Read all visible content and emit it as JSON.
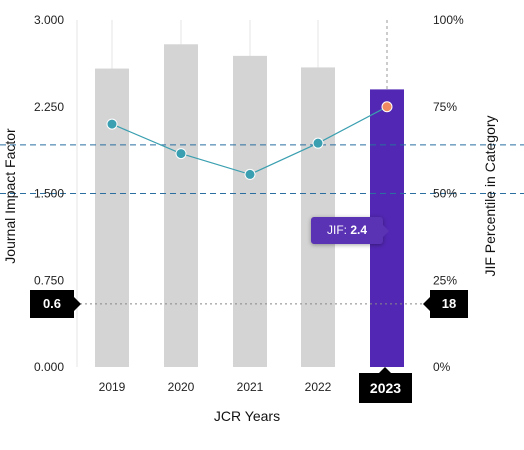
{
  "chart_data": {
    "type": "bar",
    "categories": [
      "2019",
      "2020",
      "2021",
      "2022",
      "2023"
    ],
    "series": [
      {
        "values": [
          2.58,
          2.79,
          2.69,
          2.59,
          2.4
        ],
        "colors": [
          "#d4d4d4",
          "#d4d4d4",
          "#d4d4d4",
          "#d4d4d4",
          "#5227b3"
        ]
      },
      {
        "type": "line",
        "axis": "right",
        "values": [
          70,
          61.5,
          55.5,
          64.5,
          75
        ],
        "color": "#3a9fb0",
        "highlight_color": "#f08a60"
      }
    ],
    "xlabel": "JCR Years",
    "ylabel": "Journal Impact Factor",
    "y2label": "JIF Percentile in Category",
    "ylim": [
      0,
      3
    ],
    "y2lim": [
      0,
      100
    ],
    "yticks": [
      "0.000",
      "0.750",
      "1.500",
      "2.250",
      "3.000"
    ],
    "y2ticks": [
      "0%",
      "25%",
      "50%",
      "75%",
      "100%"
    ],
    "reference_lines": [
      {
        "axis": "right",
        "value": 64,
        "style": "dashed",
        "color": "#2a6fa0"
      },
      {
        "axis": "right",
        "value": 50,
        "style": "dashed",
        "color": "#2a6fa0"
      },
      {
        "axis": "left",
        "value": 0.546,
        "style": "dotted",
        "color": "#888888"
      }
    ],
    "grid": "vertical",
    "tooltip": {
      "label": "JIF:",
      "value": "2.4"
    },
    "left_marker": "0.6",
    "right_marker": "18",
    "selected_year": "2023"
  }
}
